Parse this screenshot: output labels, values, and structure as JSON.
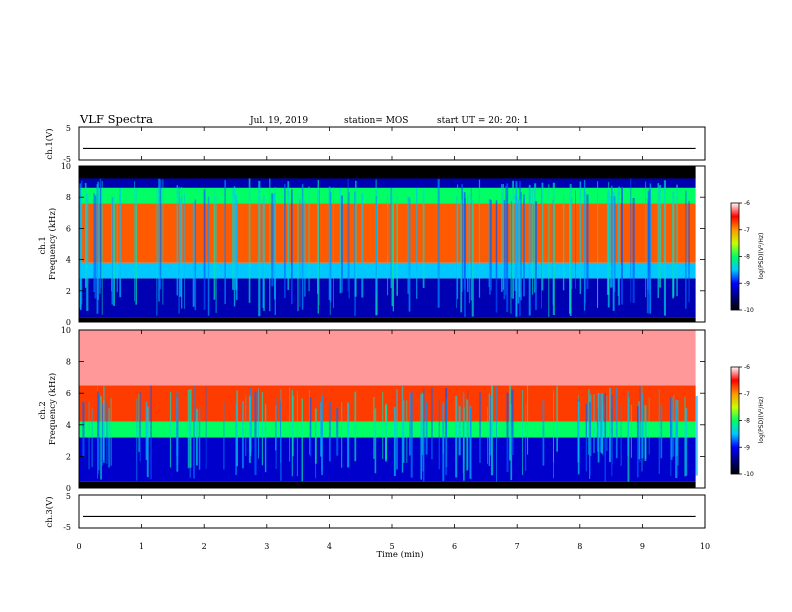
{
  "header": {
    "title": "VLF Spectra",
    "date": "Jul. 19, 2019",
    "station": "station= MOS",
    "start": "start UT =  20: 20: 1"
  },
  "chart_data": [
    {
      "type": "line",
      "name": "ch1-waveform",
      "ylabel": "ch.1(V)",
      "ylim": [
        -5,
        5
      ],
      "yticks": [
        "5",
        "-5"
      ],
      "x": [
        0,
        9.85
      ],
      "values": [
        -1.5,
        -1.5
      ]
    },
    {
      "type": "heatmap",
      "name": "ch1-spectrogram",
      "ylabel": "ch.1\nFrequency (kHz)",
      "ylim": [
        0,
        10
      ],
      "yticks": [
        "0",
        "2",
        "4",
        "6",
        "8",
        "10"
      ],
      "xlim": [
        0,
        10
      ],
      "data_end_min": 9.85,
      "bands_khz": [
        {
          "from": 0,
          "to": 0.3,
          "log_psd": -10
        },
        {
          "from": 0.3,
          "to": 2.8,
          "log_psd": -9.3
        },
        {
          "from": 2.8,
          "to": 3.8,
          "log_psd": -8.5
        },
        {
          "from": 3.8,
          "to": 7.6,
          "log_psd": -6.8
        },
        {
          "from": 7.6,
          "to": 8.6,
          "log_psd": -8
        },
        {
          "from": 8.6,
          "to": 9.2,
          "log_psd": -9.3
        },
        {
          "from": 9.2,
          "to": 10,
          "log_psd": -10
        }
      ]
    },
    {
      "type": "heatmap",
      "name": "ch2-spectrogram",
      "ylabel": "ch.2\nFrequency (kHz)",
      "ylim": [
        0,
        10
      ],
      "yticks": [
        "0",
        "2",
        "4",
        "6",
        "8",
        "10"
      ],
      "xlim": [
        0,
        10
      ],
      "data_end_min": 9.85,
      "bands_khz": [
        {
          "from": 0,
          "to": 0.4,
          "log_psd": -10
        },
        {
          "from": 0.4,
          "to": 3.2,
          "log_psd": -9.2
        },
        {
          "from": 3.2,
          "to": 4.2,
          "log_psd": -8
        },
        {
          "from": 4.2,
          "to": 6.5,
          "log_psd": -6.7
        },
        {
          "from": 6.5,
          "to": 10,
          "log_psd": -6.2
        }
      ]
    },
    {
      "type": "line",
      "name": "ch3-waveform",
      "ylabel": "ch.3(V)",
      "ylim": [
        -5,
        5
      ],
      "yticks": [
        "5",
        "-5"
      ],
      "x": [
        0,
        9.85
      ],
      "values": [
        -1.5,
        -1.5
      ]
    }
  ],
  "x_axis": {
    "xlabel": "Time (min)",
    "ticks": [
      "0",
      "1",
      "2",
      "3",
      "4",
      "5",
      "6",
      "7",
      "8",
      "9",
      "10"
    ]
  },
  "colorbars": [
    {
      "label": "log(PSD)(V²/Hz)",
      "ticks": [
        "-6",
        "-7",
        "-8",
        "-9",
        "-10"
      ],
      "range": [
        -10,
        -6
      ]
    },
    {
      "label": "log(PSD)(V²/Hz)",
      "ticks": [
        "-6",
        "-7",
        "-8",
        "-9",
        "-10"
      ],
      "range": [
        -10,
        -6
      ]
    }
  ],
  "colors": {
    "scale": [
      "#000000",
      "#000080",
      "#0000ff",
      "#00c8ff",
      "#00ff64",
      "#c8ff00",
      "#ff9600",
      "#ff0000",
      "#ffffff"
    ]
  }
}
